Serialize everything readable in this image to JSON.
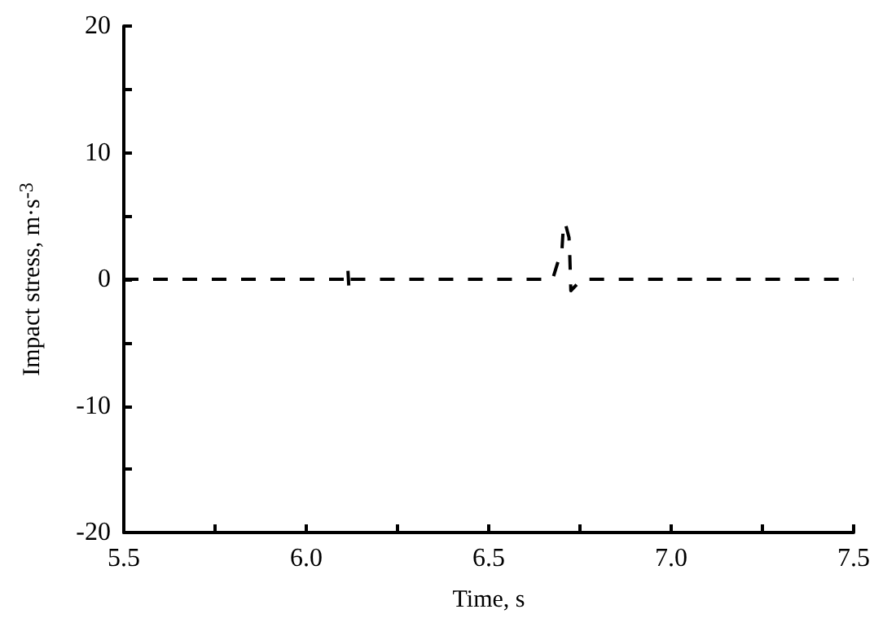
{
  "chart_data": {
    "type": "line",
    "xlabel": "Time, s",
    "ylabel": "Impact stress, m·s$^{-3}$",
    "x": [
      5.5,
      6.11,
      6.114,
      6.117,
      6.12,
      6.675,
      6.69,
      6.7,
      6.705,
      6.71,
      6.72,
      6.722,
      6.725,
      6.745,
      6.76,
      7.5
    ],
    "series": [
      {
        "color": "#000000",
        "values": [
          0,
          0,
          0.8,
          -0.8,
          0,
          0,
          1.4,
          2,
          4.4,
          4.4,
          3.3,
          2,
          -0.9,
          -0.3,
          0,
          0
        ]
      }
    ],
    "xlim": [
      5.5,
      7.5
    ],
    "xticks": [
      {
        "value": 5.5,
        "label": "5.5"
      },
      {
        "value": 5.75,
        "label": null
      },
      {
        "value": 6,
        "label": "6.0"
      },
      {
        "value": 6.25,
        "label": null
      },
      {
        "value": 6.5,
        "label": "6.5"
      },
      {
        "value": 6.75,
        "label": null
      },
      {
        "value": 7,
        "label": "7.0"
      },
      {
        "value": 7.25,
        "label": null
      },
      {
        "value": 7.5,
        "label": "7.5"
      }
    ],
    "ylim": [
      -20,
      20
    ],
    "yticks": [
      -20,
      {
        "value": -15,
        "label": null
      },
      -10,
      {
        "value": -5,
        "label": null
      },
      0,
      {
        "value": 5,
        "label": null
      },
      10,
      {
        "value": 15,
        "label": null
      },
      20
    ],
    "grid": false,
    "marker": "none",
    "line_style": "dashed"
  }
}
